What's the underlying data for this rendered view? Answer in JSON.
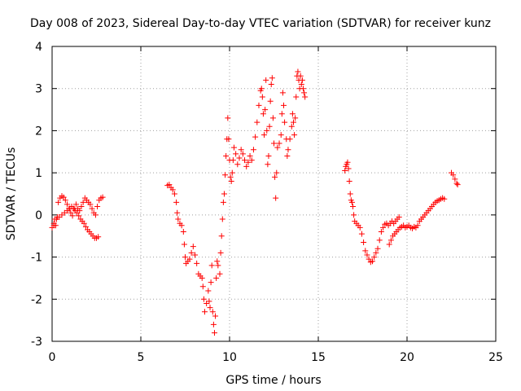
{
  "chart_data": {
    "type": "scatter",
    "title": "Day 008 of 2023, Sidereal Day-to-day VTEC variation (SDTVAR) for receiver kunz",
    "xlabel": "GPS time / hours",
    "ylabel": "SDTVAR / TECUs",
    "xlim": [
      0,
      25
    ],
    "ylim": [
      -3,
      4
    ],
    "x_ticks": [
      0,
      5,
      10,
      15,
      20,
      25
    ],
    "y_ticks": [
      -3,
      -2,
      -1,
      0,
      1,
      2,
      3,
      4
    ],
    "x_tick_labels": [
      "0",
      "5",
      "10",
      "15",
      "20",
      "25"
    ],
    "y_tick_labels": [
      "-3",
      "-2",
      "-1",
      "0",
      "1",
      "2",
      "3",
      "4"
    ],
    "grid": true,
    "marker": "plus",
    "color": "#ff0000",
    "series": [
      {
        "points": [
          [
            0.0,
            -0.3
          ],
          [
            0.1,
            -0.25
          ],
          [
            0.15,
            -0.1
          ],
          [
            0.2,
            -0.25
          ],
          [
            0.3,
            -0.05
          ],
          [
            0.35,
            0.3
          ],
          [
            0.45,
            0.4
          ],
          [
            0.55,
            0.45
          ],
          [
            0.65,
            0.42
          ],
          [
            0.75,
            0.35
          ],
          [
            0.85,
            0.25
          ],
          [
            0.95,
            0.15
          ],
          [
            1.05,
            0.05
          ],
          [
            1.15,
            -0.02
          ],
          [
            1.25,
            0.15
          ],
          [
            1.35,
            0.25
          ],
          [
            1.45,
            0.15
          ],
          [
            1.55,
            0.1
          ],
          [
            1.65,
            0.2
          ],
          [
            1.75,
            0.3
          ],
          [
            1.85,
            0.4
          ],
          [
            1.95,
            0.35
          ],
          [
            2.05,
            0.3
          ],
          [
            2.15,
            0.25
          ],
          [
            2.25,
            0.15
          ],
          [
            2.35,
            0.05
          ],
          [
            2.45,
            0.0
          ],
          [
            2.55,
            0.2
          ],
          [
            2.65,
            0.35
          ],
          [
            2.75,
            0.4
          ],
          [
            2.85,
            0.42
          ],
          [
            0.1,
            -0.2
          ],
          [
            0.25,
            -0.1
          ],
          [
            0.4,
            -0.05
          ],
          [
            0.55,
            0.0
          ],
          [
            0.7,
            0.05
          ],
          [
            0.85,
            0.1
          ],
          [
            1.0,
            0.15
          ],
          [
            1.1,
            0.2
          ],
          [
            1.2,
            0.15
          ],
          [
            1.3,
            0.1
          ],
          [
            1.4,
            0.05
          ],
          [
            1.5,
            -0.02
          ],
          [
            1.6,
            -0.1
          ],
          [
            1.7,
            -0.15
          ],
          [
            1.8,
            -0.2
          ],
          [
            1.9,
            -0.28
          ],
          [
            2.0,
            -0.35
          ],
          [
            2.1,
            -0.4
          ],
          [
            2.2,
            -0.45
          ],
          [
            2.3,
            -0.5
          ],
          [
            2.4,
            -0.55
          ],
          [
            2.5,
            -0.55
          ],
          [
            2.6,
            -0.52
          ]
        ]
      },
      {
        "points": [
          [
            6.5,
            0.7
          ],
          [
            6.6,
            0.72
          ],
          [
            6.7,
            0.65
          ],
          [
            6.8,
            0.6
          ],
          [
            6.9,
            0.5
          ],
          [
            7.0,
            0.3
          ],
          [
            7.05,
            0.05
          ],
          [
            7.1,
            -0.1
          ],
          [
            7.2,
            -0.2
          ],
          [
            7.3,
            -0.25
          ],
          [
            7.4,
            -0.4
          ],
          [
            7.45,
            -0.7
          ],
          [
            7.5,
            -1.0
          ],
          [
            7.55,
            -1.15
          ],
          [
            7.65,
            -1.1
          ],
          [
            7.75,
            -1.05
          ],
          [
            7.85,
            -0.9
          ],
          [
            7.95,
            -0.75
          ],
          [
            8.05,
            -0.95
          ],
          [
            8.15,
            -1.15
          ],
          [
            8.25,
            -1.4
          ],
          [
            8.35,
            -1.45
          ],
          [
            8.45,
            -1.5
          ],
          [
            8.5,
            -1.7
          ],
          [
            8.55,
            -2.0
          ],
          [
            8.6,
            -2.3
          ],
          [
            8.7,
            -2.1
          ],
          [
            8.8,
            -1.8
          ],
          [
            8.85,
            -2.05
          ],
          [
            8.9,
            -2.2
          ],
          [
            8.95,
            -1.6
          ],
          [
            9.0,
            -1.2
          ],
          [
            9.05,
            -2.3
          ],
          [
            9.1,
            -2.6
          ],
          [
            9.15,
            -2.8
          ],
          [
            9.2,
            -2.4
          ],
          [
            9.25,
            -1.5
          ],
          [
            9.3,
            -1.1
          ],
          [
            9.35,
            -1.2
          ],
          [
            9.45,
            -1.4
          ],
          [
            9.5,
            -0.9
          ],
          [
            9.55,
            -0.5
          ],
          [
            9.6,
            -0.1
          ],
          [
            9.65,
            0.3
          ],
          [
            9.7,
            0.5
          ],
          [
            9.75,
            0.95
          ],
          [
            9.8,
            1.4
          ],
          [
            9.85,
            1.8
          ],
          [
            9.9,
            2.3
          ],
          [
            9.95,
            1.8
          ],
          [
            10.0,
            1.3
          ],
          [
            10.05,
            0.9
          ],
          [
            10.1,
            0.8
          ],
          [
            10.15,
            1.0
          ],
          [
            10.2,
            1.3
          ],
          [
            10.25,
            1.6
          ],
          [
            10.35,
            1.45
          ],
          [
            10.45,
            1.2
          ],
          [
            10.55,
            1.35
          ],
          [
            10.65,
            1.55
          ],
          [
            10.75,
            1.45
          ],
          [
            10.85,
            1.3
          ],
          [
            10.95,
            1.15
          ],
          [
            11.05,
            1.25
          ],
          [
            11.15,
            1.4
          ],
          [
            11.25,
            1.3
          ],
          [
            11.35,
            1.55
          ],
          [
            11.45,
            1.85
          ],
          [
            11.55,
            2.2
          ],
          [
            11.65,
            2.6
          ],
          [
            11.75,
            2.95
          ],
          [
            11.8,
            3.0
          ],
          [
            11.85,
            2.8
          ],
          [
            11.9,
            2.4
          ],
          [
            11.95,
            1.9
          ],
          [
            12.0,
            2.5
          ],
          [
            12.05,
            3.2
          ],
          [
            12.1,
            2.0
          ],
          [
            12.15,
            1.2
          ],
          [
            12.2,
            1.4
          ],
          [
            12.25,
            2.1
          ],
          [
            12.3,
            2.7
          ],
          [
            12.35,
            3.1
          ],
          [
            12.4,
            3.25
          ],
          [
            12.45,
            2.3
          ],
          [
            12.5,
            1.7
          ],
          [
            12.55,
            0.9
          ],
          [
            12.6,
            0.4
          ],
          [
            12.65,
            1.0
          ],
          [
            12.7,
            1.6
          ],
          [
            12.8,
            1.7
          ],
          [
            12.9,
            1.9
          ],
          [
            12.95,
            2.4
          ],
          [
            13.0,
            2.9
          ],
          [
            13.05,
            2.6
          ],
          [
            13.1,
            2.2
          ],
          [
            13.2,
            1.8
          ],
          [
            13.25,
            1.4
          ],
          [
            13.3,
            1.55
          ],
          [
            13.4,
            1.8
          ],
          [
            13.5,
            2.1
          ],
          [
            13.55,
            2.4
          ],
          [
            13.6,
            2.2
          ],
          [
            13.65,
            1.9
          ],
          [
            13.7,
            2.3
          ],
          [
            13.75,
            2.8
          ],
          [
            13.8,
            3.3
          ],
          [
            13.85,
            3.4
          ],
          [
            13.9,
            3.2
          ],
          [
            13.95,
            3.0
          ],
          [
            14.0,
            3.3
          ],
          [
            14.05,
            3.1
          ],
          [
            14.1,
            3.2
          ],
          [
            14.15,
            3.0
          ],
          [
            14.2,
            2.9
          ],
          [
            14.25,
            2.8
          ]
        ]
      },
      {
        "points": [
          [
            16.5,
            1.05
          ],
          [
            16.55,
            1.15
          ],
          [
            16.6,
            1.2
          ],
          [
            16.65,
            1.25
          ],
          [
            16.7,
            1.1
          ],
          [
            16.75,
            0.8
          ],
          [
            16.8,
            0.5
          ],
          [
            16.85,
            0.35
          ],
          [
            16.9,
            0.3
          ],
          [
            16.95,
            0.2
          ],
          [
            17.0,
            0.0
          ],
          [
            17.05,
            -0.15
          ],
          [
            17.15,
            -0.2
          ],
          [
            17.25,
            -0.25
          ],
          [
            17.35,
            -0.3
          ],
          [
            17.45,
            -0.45
          ],
          [
            17.55,
            -0.65
          ],
          [
            17.65,
            -0.85
          ],
          [
            17.75,
            -0.95
          ],
          [
            17.85,
            -1.05
          ],
          [
            17.95,
            -1.12
          ],
          [
            18.05,
            -1.1
          ],
          [
            18.15,
            -1.0
          ],
          [
            18.25,
            -0.9
          ],
          [
            18.35,
            -0.8
          ],
          [
            18.45,
            -0.6
          ],
          [
            18.55,
            -0.4
          ],
          [
            18.65,
            -0.3
          ],
          [
            18.75,
            -0.22
          ],
          [
            18.85,
            -0.2
          ],
          [
            18.95,
            -0.25
          ],
          [
            19.05,
            -0.2
          ],
          [
            19.15,
            -0.15
          ],
          [
            19.25,
            -0.2
          ],
          [
            19.35,
            -0.15
          ],
          [
            19.45,
            -0.1
          ],
          [
            19.55,
            -0.05
          ],
          [
            19.0,
            -0.7
          ],
          [
            19.1,
            -0.6
          ],
          [
            19.2,
            -0.5
          ],
          [
            19.3,
            -0.45
          ],
          [
            19.4,
            -0.4
          ],
          [
            19.5,
            -0.35
          ],
          [
            19.6,
            -0.3
          ],
          [
            19.7,
            -0.28
          ],
          [
            19.8,
            -0.25
          ],
          [
            19.9,
            -0.3
          ],
          [
            20.0,
            -0.28
          ],
          [
            20.1,
            -0.25
          ],
          [
            20.2,
            -0.3
          ],
          [
            20.3,
            -0.32
          ],
          [
            20.4,
            -0.28
          ],
          [
            20.5,
            -0.3
          ],
          [
            20.6,
            -0.25
          ],
          [
            20.7,
            -0.15
          ],
          [
            20.8,
            -0.1
          ],
          [
            20.9,
            -0.05
          ],
          [
            21.0,
            0.0
          ],
          [
            21.1,
            0.05
          ],
          [
            21.2,
            0.1
          ],
          [
            21.3,
            0.15
          ],
          [
            21.4,
            0.2
          ],
          [
            21.5,
            0.25
          ],
          [
            21.6,
            0.3
          ],
          [
            21.7,
            0.33
          ],
          [
            21.8,
            0.35
          ],
          [
            21.9,
            0.38
          ],
          [
            22.0,
            0.4
          ],
          [
            22.1,
            0.38
          ],
          [
            22.5,
            1.0
          ],
          [
            22.6,
            0.95
          ],
          [
            22.7,
            0.85
          ],
          [
            22.8,
            0.75
          ],
          [
            22.85,
            0.72
          ]
        ]
      }
    ]
  }
}
